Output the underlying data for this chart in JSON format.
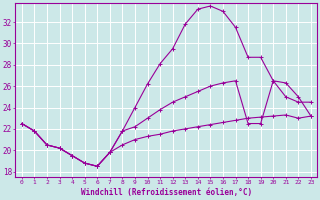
{
  "xlabel": "Windchill (Refroidissement éolien,°C)",
  "bg_color": "#cce8e8",
  "grid_color": "#ffffff",
  "line_color": "#990099",
  "xlim": [
    -0.5,
    23.5
  ],
  "ylim": [
    17.5,
    33.8
  ],
  "xticks": [
    0,
    1,
    2,
    3,
    4,
    5,
    6,
    7,
    8,
    9,
    10,
    11,
    12,
    13,
    14,
    15,
    16,
    17,
    18,
    19,
    20,
    21,
    22,
    23
  ],
  "yticks": [
    18,
    20,
    22,
    24,
    26,
    28,
    30,
    32
  ],
  "line1_x": [
    0,
    1,
    2,
    3,
    4,
    5,
    6,
    7,
    8,
    9,
    10,
    11,
    12,
    13,
    14,
    15,
    16,
    17,
    18,
    19,
    20,
    21,
    22,
    23
  ],
  "line1_y": [
    22.5,
    21.8,
    20.5,
    20.2,
    19.5,
    18.8,
    18.5,
    19.8,
    21.8,
    24.0,
    26.2,
    28.1,
    29.5,
    31.8,
    33.2,
    33.5,
    33.0,
    31.5,
    28.7,
    28.7,
    26.5,
    25.0,
    24.5,
    24.5
  ],
  "line2_x": [
    0,
    1,
    2,
    3,
    4,
    5,
    6,
    7,
    8,
    9,
    10,
    11,
    12,
    13,
    14,
    15,
    16,
    17,
    18,
    19,
    20,
    21,
    22,
    23
  ],
  "line2_y": [
    22.5,
    21.8,
    20.5,
    20.2,
    19.5,
    18.8,
    18.5,
    19.8,
    21.8,
    22.2,
    23.0,
    23.8,
    24.5,
    25.0,
    25.5,
    26.0,
    26.3,
    26.5,
    22.5,
    22.5,
    26.5,
    26.3,
    25.0,
    23.2
  ],
  "line3_x": [
    0,
    1,
    2,
    3,
    4,
    5,
    6,
    7,
    8,
    9,
    10,
    11,
    12,
    13,
    14,
    15,
    16,
    17,
    18,
    19,
    20,
    21,
    22,
    23
  ],
  "line3_y": [
    22.5,
    21.8,
    20.5,
    20.2,
    19.5,
    18.8,
    18.5,
    19.8,
    20.5,
    21.0,
    21.3,
    21.5,
    21.8,
    22.0,
    22.2,
    22.4,
    22.6,
    22.8,
    23.0,
    23.1,
    23.2,
    23.3,
    23.0,
    23.2
  ]
}
